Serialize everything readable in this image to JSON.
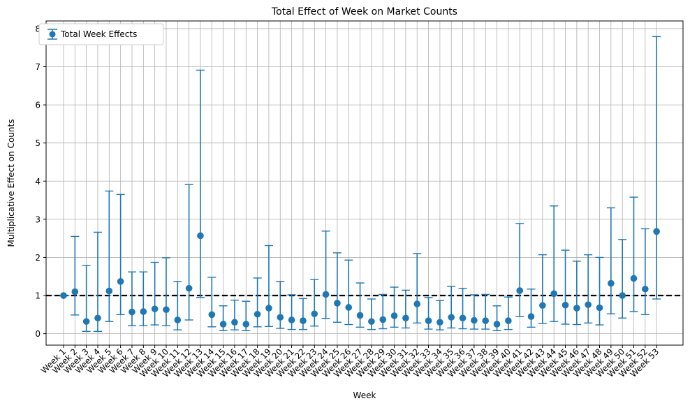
{
  "chart_data": {
    "type": "scatter",
    "title": "Total Effect of Week on Market Counts",
    "xlabel": "Week",
    "ylabel": "Multiplicative Effect on Counts",
    "ylim": [
      -0.3,
      8.2
    ],
    "yticks": [
      0,
      1,
      2,
      3,
      4,
      5,
      6,
      7,
      8
    ],
    "grid": true,
    "legend_position": "top-left",
    "reference_line": {
      "y": 1,
      "style": "dashed",
      "color": "#000000"
    },
    "series": [
      {
        "name": "Total Week Effects",
        "color": "#1f77b4",
        "categories": [
          "Week 1",
          "Week 2",
          "Week 3",
          "Week 4",
          "Week 5",
          "Week 6",
          "Week 7",
          "Week 8",
          "Week 9",
          "Week 10",
          "Week 11",
          "Week 12",
          "Week 13",
          "Week 14",
          "Week 15",
          "Week 16",
          "Week 17",
          "Week 18",
          "Week 19",
          "Week 20",
          "Week 21",
          "Week 22",
          "Week 23",
          "Week 24",
          "Week 25",
          "Week 26",
          "Week 27",
          "Week 28",
          "Week 29",
          "Week 30",
          "Week 31",
          "Week 32",
          "Week 33",
          "Week 34",
          "Week 35",
          "Week 36",
          "Week 37",
          "Week 38",
          "Week 39",
          "Week 40",
          "Week 41",
          "Week 42",
          "Week 43",
          "Week 44",
          "Week 45",
          "Week 46",
          "Week 47",
          "Week 48",
          "Week 49",
          "Week 50",
          "Week 51",
          "Week 52",
          "Week 53"
        ],
        "values": [
          1.0,
          1.1,
          0.32,
          0.41,
          1.12,
          1.37,
          0.57,
          0.58,
          0.65,
          0.63,
          0.36,
          1.19,
          2.57,
          0.5,
          0.25,
          0.3,
          0.25,
          0.51,
          0.67,
          0.43,
          0.36,
          0.34,
          0.52,
          1.03,
          0.8,
          0.69,
          0.48,
          0.32,
          0.37,
          0.47,
          0.41,
          0.78,
          0.34,
          0.3,
          0.43,
          0.41,
          0.35,
          0.34,
          0.25,
          0.34,
          1.13,
          0.45,
          0.74,
          1.05,
          0.75,
          0.67,
          0.76,
          0.68,
          1.32,
          1.0,
          1.45,
          1.17,
          2.68
        ],
        "lower": [
          1.0,
          0.49,
          0.06,
          0.06,
          0.32,
          0.5,
          0.21,
          0.21,
          0.23,
          0.21,
          0.1,
          0.36,
          0.95,
          0.18,
          0.08,
          0.1,
          0.08,
          0.18,
          0.19,
          0.14,
          0.11,
          0.11,
          0.2,
          0.4,
          0.3,
          0.24,
          0.17,
          0.11,
          0.13,
          0.17,
          0.15,
          0.28,
          0.12,
          0.1,
          0.15,
          0.13,
          0.12,
          0.12,
          0.08,
          0.11,
          0.45,
          0.17,
          0.27,
          0.32,
          0.25,
          0.24,
          0.28,
          0.23,
          0.52,
          0.41,
          0.58,
          0.5,
          0.91
        ],
        "upper": [
          1.0,
          2.55,
          1.79,
          2.66,
          3.74,
          3.65,
          1.62,
          1.62,
          1.87,
          1.99,
          1.37,
          3.91,
          6.91,
          1.48,
          0.73,
          0.88,
          0.85,
          1.46,
          2.31,
          1.37,
          1.02,
          0.92,
          1.42,
          2.69,
          2.12,
          1.93,
          1.33,
          0.91,
          1.03,
          1.22,
          1.14,
          2.1,
          0.95,
          0.87,
          1.24,
          1.19,
          1.02,
          1.03,
          0.73,
          0.96,
          2.89,
          1.17,
          2.07,
          3.35,
          2.19,
          1.9,
          2.07,
          2.0,
          3.3,
          2.47,
          3.58,
          2.75,
          7.79
        ]
      }
    ]
  }
}
